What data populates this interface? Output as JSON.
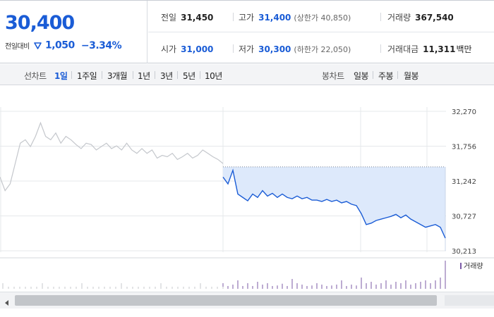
{
  "quote": {
    "current_price": "30,400",
    "change_label": "전일대비",
    "change_value": "1,050",
    "change_percent": "−3.34%",
    "direction": "down",
    "accent_color": "#1a5cd6",
    "stats": {
      "prev_close": {
        "label": "전일",
        "value": "31,450"
      },
      "open": {
        "label": "시가",
        "value": "31,000"
      },
      "high": {
        "label": "고가",
        "value": "31,400",
        "limit_label": "(상한가 40,850)"
      },
      "low": {
        "label": "저가",
        "value": "30,300",
        "limit_label": "(하한가 22,050)"
      },
      "volume": {
        "label": "거래량",
        "value": "367,540"
      },
      "turnover": {
        "label": "거래대금",
        "value": "11,311",
        "unit": "백만"
      }
    }
  },
  "tabs": {
    "line_chart_label": "선차트",
    "periods": [
      "1일",
      "1주일",
      "3개월",
      "1년",
      "3년",
      "5년",
      "10년"
    ],
    "active_period": "1일",
    "candle_chart_label": "봉차트",
    "candle_periods": [
      "일봉",
      "주봉",
      "월봉"
    ]
  },
  "chart_data": {
    "type": "line",
    "title": "",
    "y_ticks": [
      "32,270",
      "31,756",
      "31,242",
      "30,727",
      "30,213"
    ],
    "ylim": [
      30213,
      32270
    ],
    "grid": true,
    "reference_line": 31450,
    "series": [
      {
        "name": "",
        "color_prev": "#c4c7cc",
        "color_today": "#1a5cd6",
        "fill_color": "#dde9fb",
        "prev_session": [
          31300,
          31100,
          31200,
          31500,
          31800,
          31850,
          31750,
          31900,
          32100,
          31900,
          31850,
          31950,
          31800,
          31900,
          31850,
          31780,
          31720,
          31800,
          31780,
          31700,
          31750,
          31800,
          31720,
          31760,
          31700,
          31800,
          31700,
          31650,
          31720,
          31650,
          31700,
          31580,
          31620,
          31600,
          31650,
          31560,
          31600,
          31650,
          31580,
          31620,
          31700,
          31650,
          31600,
          31560,
          31500
        ],
        "today_session": [
          31300,
          31200,
          31400,
          31050,
          31000,
          30950,
          31050,
          31000,
          31100,
          31020,
          31060,
          31000,
          31050,
          31000,
          30980,
          31020,
          30980,
          31000,
          30960,
          30960,
          30940,
          30970,
          30940,
          30960,
          30920,
          30940,
          30900,
          30880,
          30760,
          30600,
          30620,
          30660,
          30680,
          30700,
          30720,
          30750,
          30700,
          30740,
          30680,
          30640,
          30600,
          30560,
          30580,
          30600,
          30560,
          30400
        ]
      }
    ]
  },
  "volume": {
    "legend": "거래량",
    "color": "#7b5aa6",
    "spikes": [
      0.2,
      0.1,
      0.15,
      0.3,
      0.1,
      0.2,
      0.1,
      0.25,
      0.15,
      0.2,
      0.1,
      0.12,
      0.18,
      0.1,
      0.35,
      0.2,
      0.15,
      0.1,
      0.12,
      0.2,
      0.15,
      0.1,
      0.12,
      0.15,
      0.3,
      0.1,
      0.15,
      0.12,
      0.4,
      0.2,
      0.25,
      0.15,
      0.2,
      0.3,
      0.15,
      0.25,
      0.2,
      0.3,
      0.15,
      0.2,
      0.25,
      0.3,
      0.2,
      0.3,
      0.4,
      1.0
    ]
  },
  "scroll": {
    "position": 0.0
  }
}
